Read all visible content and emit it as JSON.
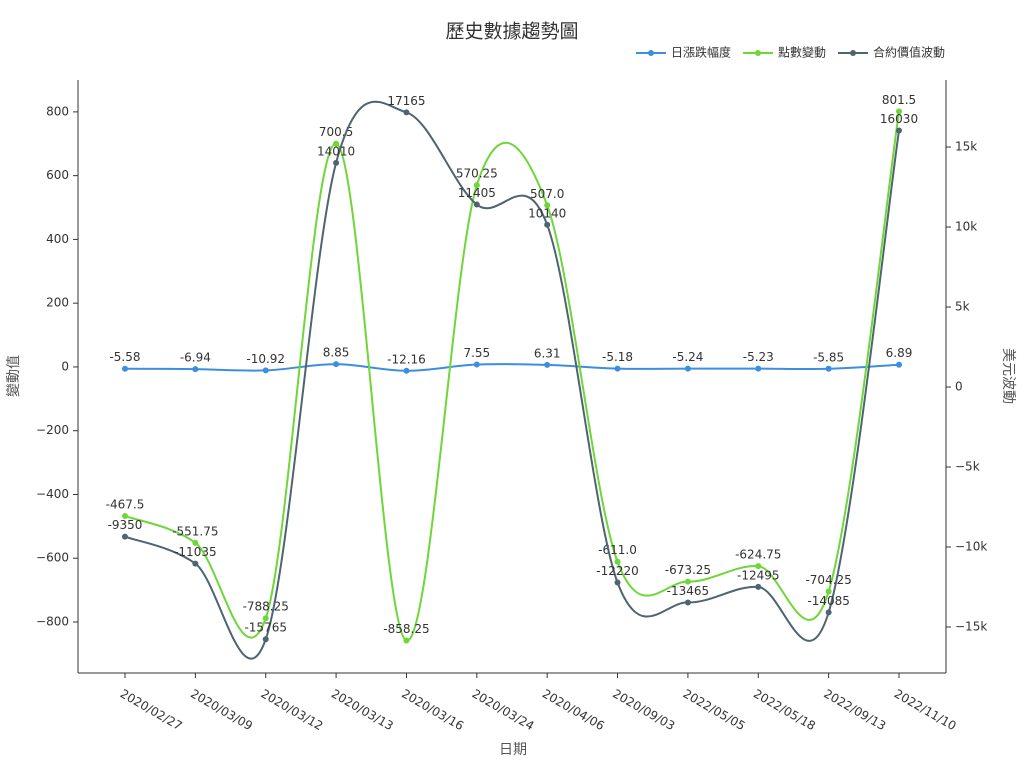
{
  "chart_data": {
    "type": "line",
    "title": "歷史數據趨勢圖",
    "x_label": "日期",
    "y_label": "變動值",
    "y2_label": "美元波動",
    "categories": [
      "2020/02/27",
      "2020/03/09",
      "2020/03/12",
      "2020/03/13",
      "2020/03/16",
      "2020/03/24",
      "2020/04/06",
      "2020/09/03",
      "2022/05/05",
      "2022/05/18",
      "2022/09/13",
      "2022/11/10"
    ],
    "series": [
      {
        "name": "日漲跌幅度",
        "color": "#3b8ee0",
        "values": [
          -5.58,
          -6.94,
          -10.92,
          8.85,
          -12.16,
          7.55,
          6.31,
          -5.18,
          -5.24,
          -5.23,
          -5.85,
          6.89
        ]
      },
      {
        "name": "點數變動",
        "color": "#6fd63a",
        "values": [
          -467.5,
          -551.75,
          -788.25,
          700.5,
          -858.25,
          570.25,
          507.0,
          -611.0,
          -673.25,
          -624.75,
          -704.25,
          801.5
        ],
        "value_labels": [
          "-467.5",
          "-551.75",
          "-788.25",
          "700.5",
          "-858.25",
          "570.25",
          "507.0",
          "-611.0",
          "-673.25",
          "-624.75",
          "-704.25",
          "801.5"
        ]
      },
      {
        "name": "合約價值波動",
        "color": "#4e6470",
        "axis": "y2",
        "values": [
          -9350,
          -11035,
          -15765,
          14010,
          17165,
          11405,
          10140,
          -12220,
          -13465,
          -12495,
          -14085,
          16030
        ]
      }
    ],
    "ylim": [
      -960,
      900
    ],
    "yticks": [
      {
        "value": -800,
        "label": "−800"
      },
      {
        "value": -600,
        "label": "−600"
      },
      {
        "value": -400,
        "label": "−400"
      },
      {
        "value": -200,
        "label": "−200"
      },
      0,
      200,
      400,
      600,
      800
    ],
    "y2lim": [
      -17875,
      19190
    ],
    "y2ticks": [
      {
        "value": -15000,
        "label": "−15k"
      },
      {
        "value": -10000,
        "label": "−10k"
      },
      {
        "value": -5000,
        "label": "−5k"
      },
      0,
      {
        "value": 5000,
        "label": "5k"
      },
      {
        "value": 10000,
        "label": "10k"
      },
      {
        "value": 15000,
        "label": "15k"
      }
    ],
    "legend": "top-right",
    "grid": false
  }
}
